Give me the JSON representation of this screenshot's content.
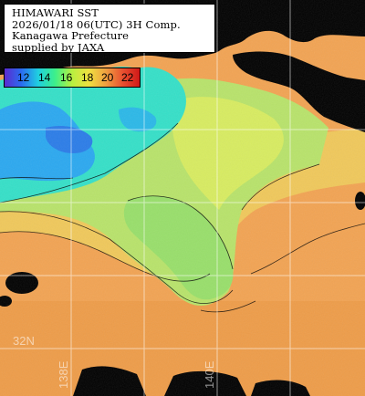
{
  "info": {
    "line1": "HIMAWARI SST",
    "line2": "2026/01/18 06(UTC) 3H Comp.",
    "line3": "Kanagawa Prefecture",
    "line4": "supplied by JAXA"
  },
  "legend": {
    "labels": [
      "12",
      "14",
      "16",
      "18",
      "20",
      "22"
    ],
    "colors": [
      "#5a2bd0",
      "#2a6cf0",
      "#1fd0e0",
      "#3df08a",
      "#b8f040",
      "#f0e040",
      "#f0a040",
      "#e85030",
      "#d01818"
    ]
  },
  "grid": {
    "lat_label": "32N",
    "lon_labels": [
      "138E",
      "140E"
    ]
  },
  "colors": {
    "land": "#000000",
    "warm_sea": "#f2a352",
    "mid_sea": "#b8e36a",
    "cool_sea": "#34e0c8",
    "cold_sea": "#2aa8f0"
  }
}
